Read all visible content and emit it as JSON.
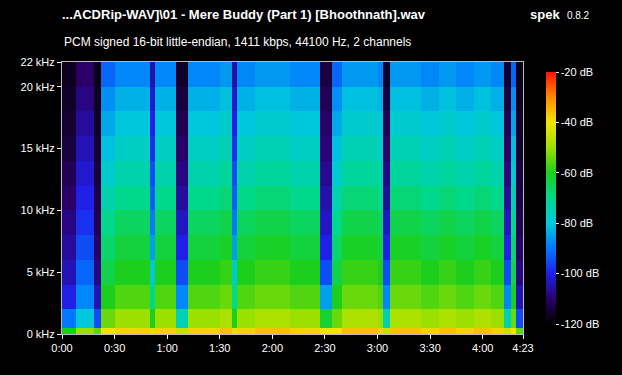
{
  "chart_data": {
    "type": "heatmap",
    "title": "...ACDRip-WAV]\\01 - Mere Buddy (Part 1) [Bhoothnath].wav",
    "subtitle": "PCM signed 16-bit little-endian, 1411 kbps, 44100 Hz, 2 channels",
    "annotations": [
      "spek",
      "0.8.2"
    ],
    "grid": false,
    "x_edges": [
      0,
      8,
      18,
      22,
      30,
      40,
      50,
      53,
      57,
      65,
      72,
      80,
      90,
      97,
      100,
      110,
      120,
      130,
      140,
      147,
      154,
      160,
      170,
      180,
      183,
      187,
      195,
      205,
      215,
      225,
      235,
      245,
      252,
      256,
      259,
      263
    ],
    "y_edges": [
      0,
      0.5,
      2,
      4,
      6,
      8,
      10,
      12,
      14,
      16,
      18,
      20,
      22
    ],
    "cells": [
      [
        -60,
        -50,
        -55,
        -40,
        -38,
        -38,
        -42,
        -38,
        -38,
        -45,
        -38,
        -38,
        -36,
        -42,
        -38,
        -36,
        -36,
        -38,
        -38,
        -40,
        -40,
        -36,
        -36,
        -38,
        -45,
        -36,
        -36,
        -38,
        -36,
        -38,
        -36,
        -38,
        -45,
        -40,
        -55
      ],
      [
        -90,
        -80,
        -95,
        -54,
        -50,
        -50,
        -60,
        -50,
        -50,
        -75,
        -50,
        -50,
        -48,
        -60,
        -50,
        -48,
        -48,
        -50,
        -50,
        -62,
        -54,
        -48,
        -48,
        -50,
        -75,
        -48,
        -48,
        -50,
        -48,
        -50,
        -48,
        -50,
        -75,
        -54,
        -95
      ],
      [
        -100,
        -88,
        -104,
        -60,
        -56,
        -56,
        -70,
        -56,
        -56,
        -88,
        -56,
        -56,
        -54,
        -70,
        -56,
        -54,
        -54,
        -56,
        -56,
        -85,
        -60,
        -54,
        -54,
        -56,
        -88,
        -54,
        -54,
        -56,
        -54,
        -56,
        -54,
        -56,
        -88,
        -60,
        -104
      ],
      [
        -104,
        -92,
        -108,
        -64,
        -60,
        -60,
        -78,
        -60,
        -60,
        -95,
        -60,
        -60,
        -58,
        -78,
        -60,
        -58,
        -58,
        -60,
        -60,
        -95,
        -64,
        -58,
        -58,
        -60,
        -95,
        -58,
        -58,
        -60,
        -58,
        -60,
        -58,
        -60,
        -95,
        -64,
        -108
      ],
      [
        -106,
        -95,
        -110,
        -67,
        -63,
        -63,
        -85,
        -63,
        -63,
        -100,
        -63,
        -63,
        -61,
        -85,
        -63,
        -61,
        -61,
        -63,
        -63,
        -100,
        -67,
        -61,
        -61,
        -63,
        -100,
        -61,
        -61,
        -63,
        -61,
        -63,
        -61,
        -63,
        -100,
        -67,
        -110
      ],
      [
        -108,
        -98,
        -112,
        -70,
        -66,
        -66,
        -90,
        -66,
        -66,
        -103,
        -66,
        -66,
        -64,
        -90,
        -66,
        -64,
        -64,
        -66,
        -66,
        -103,
        -70,
        -64,
        -64,
        -66,
        -103,
        -64,
        -64,
        -66,
        -64,
        -66,
        -64,
        -66,
        -103,
        -70,
        -112
      ],
      [
        -110,
        -100,
        -113,
        -74,
        -70,
        -70,
        -93,
        -70,
        -70,
        -106,
        -70,
        -70,
        -68,
        -93,
        -70,
        -68,
        -68,
        -70,
        -70,
        -105,
        -74,
        -68,
        -68,
        -70,
        -106,
        -68,
        -68,
        -70,
        -68,
        -70,
        -68,
        -70,
        -106,
        -74,
        -113
      ],
      [
        -112,
        -102,
        -114,
        -78,
        -74,
        -74,
        -95,
        -74,
        -74,
        -108,
        -74,
        -74,
        -72,
        -95,
        -74,
        -72,
        -72,
        -74,
        -74,
        -107,
        -78,
        -72,
        -72,
        -74,
        -108,
        -72,
        -72,
        -74,
        -72,
        -74,
        -72,
        -74,
        -108,
        -78,
        -114
      ],
      [
        -114,
        -104,
        -115,
        -81,
        -77,
        -77,
        -98,
        -77,
        -77,
        -110,
        -77,
        -77,
        -75,
        -98,
        -77,
        -75,
        -75,
        -77,
        -77,
        -109,
        -81,
        -75,
        -75,
        -77,
        -110,
        -75,
        -75,
        -77,
        -75,
        -77,
        -75,
        -77,
        -110,
        -81,
        -115
      ],
      [
        -115,
        -106,
        -116,
        -84,
        -80,
        -80,
        -100,
        -80,
        -80,
        -112,
        -80,
        -80,
        -78,
        -100,
        -80,
        -78,
        -78,
        -80,
        -80,
        -110,
        -84,
        -78,
        -78,
        -80,
        -112,
        -78,
        -78,
        -80,
        -78,
        -80,
        -78,
        -80,
        -112,
        -84,
        -116
      ],
      [
        -116,
        -108,
        -117,
        -87,
        -83,
        -83,
        -102,
        -83,
        -83,
        -114,
        -83,
        -83,
        -81,
        -102,
        -83,
        -81,
        -81,
        -83,
        -83,
        -112,
        -87,
        -81,
        -81,
        -83,
        -114,
        -81,
        -81,
        -83,
        -81,
        -83,
        -81,
        -83,
        -114,
        -87,
        -117
      ],
      [
        -117,
        -110,
        -118,
        -92,
        -88,
        -88,
        -105,
        -88,
        -88,
        -116,
        -88,
        -88,
        -86,
        -105,
        -88,
        -86,
        -86,
        -88,
        -88,
        -114,
        -92,
        -86,
        -86,
        -88,
        -116,
        -86,
        -86,
        -88,
        -86,
        -88,
        -86,
        -88,
        -116,
        -92,
        -118
      ]
    ],
    "xlim": [
      0,
      263
    ],
    "xticks": [
      {
        "value": 0,
        "label": "0:00"
      },
      {
        "value": 30,
        "label": "0:30"
      },
      {
        "value": 60,
        "label": "1:00"
      },
      {
        "value": 90,
        "label": "1:30"
      },
      {
        "value": 120,
        "label": "2:00"
      },
      {
        "value": 150,
        "label": "2:30"
      },
      {
        "value": 180,
        "label": "3:00"
      },
      {
        "value": 210,
        "label": "3:30"
      },
      {
        "value": 240,
        "label": "4:00"
      },
      {
        "value": 263,
        "label": "4:23"
      }
    ],
    "ylim": [
      0,
      22
    ],
    "yticks": [
      {
        "value": 0,
        "label": "0 kHz"
      },
      {
        "value": 5,
        "label": "5 kHz"
      },
      {
        "value": 10,
        "label": "10 kHz"
      },
      {
        "value": 15,
        "label": "15 kHz"
      },
      {
        "value": 20,
        "label": "20 kHz"
      },
      {
        "value": 22,
        "label": "22 kHz"
      }
    ],
    "colorbar_range": [
      -120,
      -20
    ],
    "colorbar_ticks": [
      {
        "value": -20,
        "label": "-20 dB"
      },
      {
        "value": -40,
        "label": "-40 dB"
      },
      {
        "value": -60,
        "label": "-60 dB"
      },
      {
        "value": -80,
        "label": "-80 dB"
      },
      {
        "value": -100,
        "label": "-100 dB"
      },
      {
        "value": -120,
        "label": "-120 dB"
      }
    ]
  }
}
